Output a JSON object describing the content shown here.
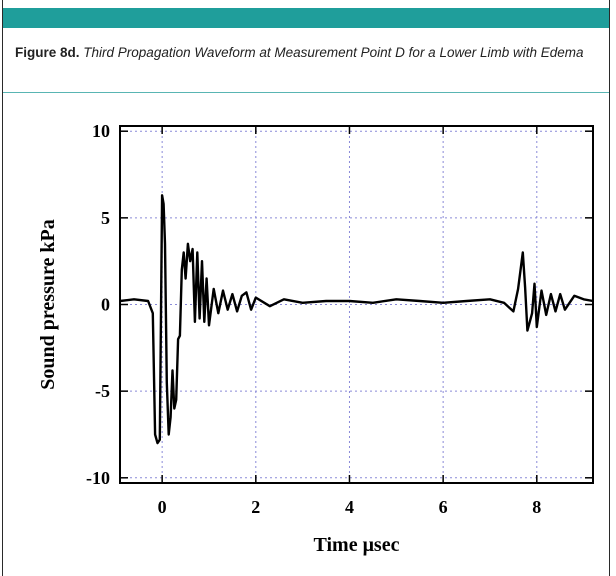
{
  "figure": {
    "label": "Figure 8d.",
    "title": "Third Propagation Waveform at Measurement Point D for a Lower Limb with Edema"
  },
  "colors": {
    "accent": "#1f9e9b",
    "rule": "#59b5b3",
    "grid": "#8a8ad8",
    "line": "#000000"
  },
  "chart_data": {
    "type": "line",
    "title": "",
    "xlabel": "Time μsec",
    "ylabel": "Sound pressure kPa",
    "xlim": [
      -0.9,
      9.2
    ],
    "ylim": [
      -10.3,
      10.3
    ],
    "xticks": [
      0,
      2,
      4,
      6,
      8
    ],
    "yticks": [
      -10,
      -5,
      0,
      5,
      10
    ],
    "xtick_labels": [
      "0",
      "2",
      "4",
      "6",
      "8"
    ],
    "ytick_labels": [
      "-10",
      "-5",
      "0",
      "5",
      "10"
    ],
    "grid": true,
    "series": [
      {
        "x": [
          -0.9,
          -0.6,
          -0.3,
          -0.2,
          -0.15,
          -0.1,
          -0.05,
          0.0,
          0.03,
          0.06,
          0.1,
          0.14,
          0.18,
          0.22,
          0.26,
          0.3,
          0.34,
          0.38,
          0.42,
          0.46,
          0.5,
          0.55,
          0.6,
          0.65,
          0.7,
          0.75,
          0.8,
          0.85,
          0.9,
          0.95,
          1.0,
          1.1,
          1.2,
          1.3,
          1.4,
          1.5,
          1.6,
          1.7,
          1.8,
          1.9,
          2.0,
          2.3,
          2.6,
          3.0,
          3.5,
          4.0,
          4.5,
          5.0,
          5.5,
          6.0,
          6.5,
          7.0,
          7.3,
          7.5,
          7.6,
          7.7,
          7.75,
          7.8,
          7.85,
          7.9,
          7.95,
          8.0,
          8.1,
          8.2,
          8.3,
          8.4,
          8.5,
          8.6,
          8.8,
          9.0,
          9.2
        ],
        "y": [
          0.2,
          0.3,
          0.2,
          -0.5,
          -7.5,
          -8.0,
          -7.8,
          6.3,
          5.8,
          3.5,
          -4.5,
          -7.5,
          -6.5,
          -3.8,
          -6.0,
          -5.5,
          -2.0,
          -1.8,
          2.0,
          3.0,
          1.5,
          3.5,
          2.5,
          3.2,
          -1.0,
          3.0,
          -0.8,
          2.5,
          -1.0,
          1.5,
          -1.2,
          0.9,
          -0.5,
          0.8,
          -0.3,
          0.6,
          -0.4,
          0.5,
          0.7,
          -0.3,
          0.4,
          -0.1,
          0.3,
          0.1,
          0.2,
          0.2,
          0.1,
          0.3,
          0.2,
          0.1,
          0.2,
          0.3,
          0.1,
          -0.4,
          0.9,
          3.0,
          1.0,
          -1.5,
          -1.0,
          -0.5,
          1.2,
          -1.3,
          0.8,
          -0.6,
          0.6,
          -0.4,
          0.6,
          -0.3,
          0.5,
          0.3,
          0.2
        ]
      }
    ]
  }
}
